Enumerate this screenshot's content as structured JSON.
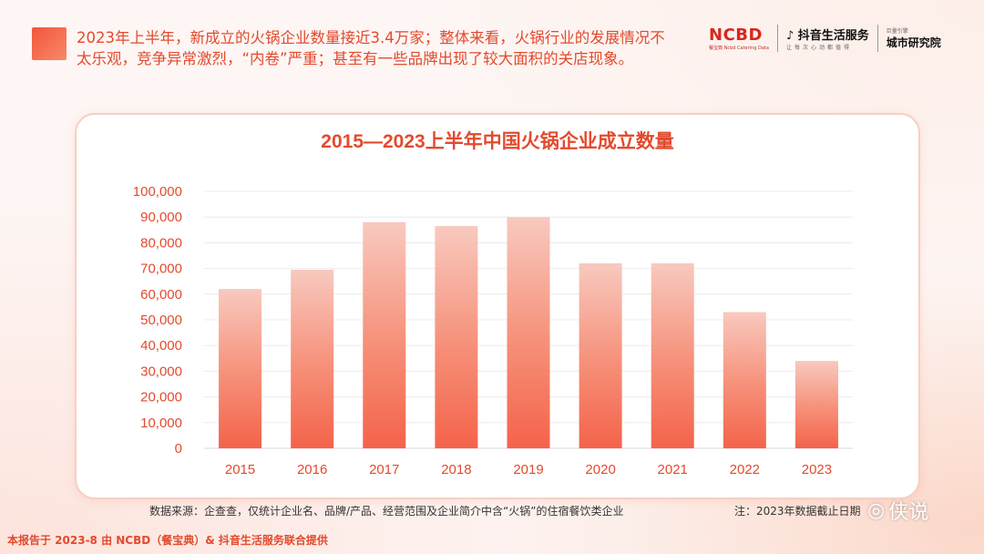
{
  "header": {
    "text": "2023年上半年，新成立的火锅企业数量接近3.4万家；整体来看，火锅行业的发展情况不太乐观，竞争异常激烈，“内卷”严重；甚至有一些品牌出现了较大面积的关店现象。"
  },
  "logos": {
    "ncbd": "NCBD",
    "ncbd_sub": "餐宝典 Ncbd Catering Data",
    "douyin": "抖音生活服务",
    "douyin_sub": "让每次心动都值得",
    "city_sub": "巨量引擎",
    "city": "城市研究院"
  },
  "source_text": "数据来源：企查查，仅统计企业名、品牌/产品、经营范围及企业简介中含“火锅”的住宿餐饮类企业",
  "note_text": "注：2023年数据截止日期",
  "footer_text": "本报告于 2023-8 由 NCBD（餐宝典）& 抖音生活服务联合提供",
  "watermark_text": "侠说",
  "colors": {
    "accent": "#e34a2d",
    "bar_top": "#f7c4b9",
    "bar_bottom": "#f5674e"
  },
  "chart_data": {
    "type": "bar",
    "title": "2015—2023上半年中国火锅企业成立数量",
    "categories": [
      "2015",
      "2016",
      "2017",
      "2018",
      "2019",
      "2020",
      "2021",
      "2022",
      "2023"
    ],
    "values": [
      62000,
      69500,
      88000,
      86500,
      90000,
      72000,
      72000,
      53000,
      34000
    ],
    "y_ticks": [
      "0",
      "10,000",
      "20,000",
      "30,000",
      "40,000",
      "50,000",
      "60,000",
      "70,000",
      "80,000",
      "90,000",
      "100,000"
    ],
    "ylim": [
      0,
      100000
    ],
    "grid": true,
    "legend": "none"
  }
}
